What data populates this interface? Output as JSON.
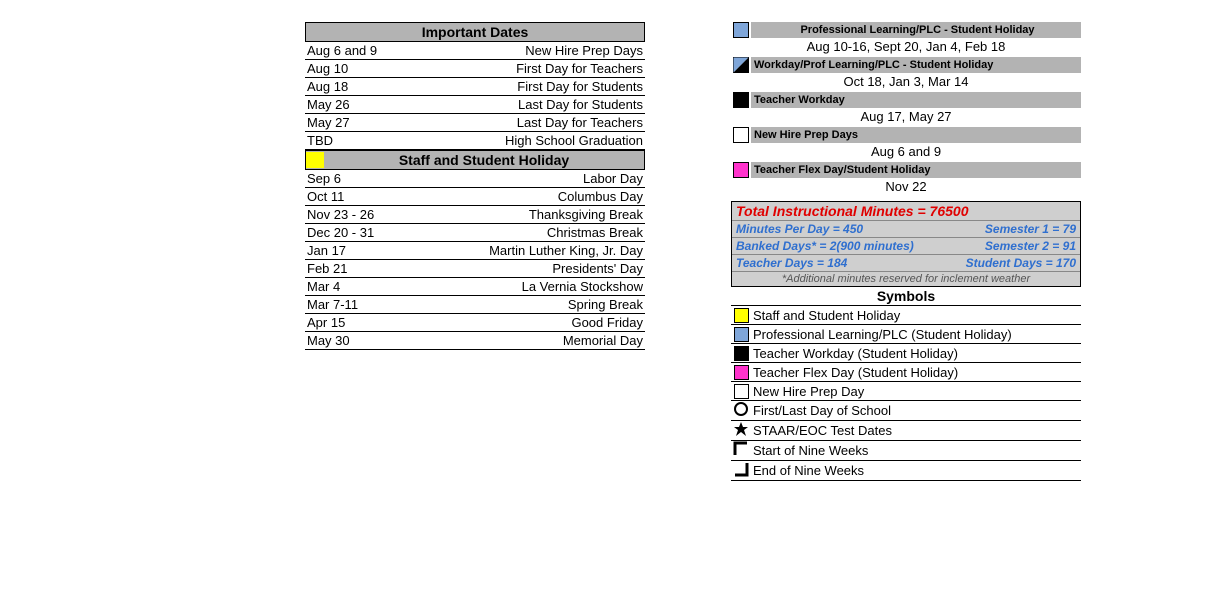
{
  "colors": {
    "yellow": "#ffff00",
    "blue": "#7fa6d9",
    "black": "#000000",
    "white": "#ffffff",
    "magenta": "#ff33cc",
    "grey_hdr": "#b3b3b3"
  },
  "left": {
    "important_dates_hdr": "Important Dates",
    "important_dates": [
      {
        "date": "Aug 6 and 9",
        "label": "New Hire Prep Days"
      },
      {
        "date": "Aug 10",
        "label": "First Day for Teachers"
      },
      {
        "date": "Aug 18",
        "label": "First Day for Students"
      },
      {
        "date": "May 26",
        "label": "Last Day for Students"
      },
      {
        "date": "May 27",
        "label": "Last Day for Teachers"
      },
      {
        "date": "TBD",
        "label": "High School Graduation"
      }
    ],
    "holiday_hdr": "Staff and Student Holiday",
    "holidays": [
      {
        "date": "Sep 6",
        "label": "Labor Day"
      },
      {
        "date": "Oct 11",
        "label": "Columbus Day"
      },
      {
        "date": "Nov 23 - 26",
        "label": "Thanksgiving Break"
      },
      {
        "date": "Dec 20 - 31",
        "label": "Christmas Break"
      },
      {
        "date": "Jan 17",
        "label": "Martin Luther King, Jr. Day"
      },
      {
        "date": "Feb 21",
        "label": "Presidents' Day"
      },
      {
        "date": "Mar 4",
        "label": "La Vernia Stockshow"
      },
      {
        "date": "Mar 7-11",
        "label": "Spring Break"
      },
      {
        "date": "Apr 15",
        "label": "Good Friday"
      },
      {
        "date": "May 30",
        "label": "Memorial Day"
      }
    ]
  },
  "legend": [
    {
      "color": "#7fa6d9",
      "diag": false,
      "title": "Professional Learning/PLC - Student Holiday",
      "center_title": true,
      "dates": "Aug 10-16, Sept 20, Jan 4, Feb 18"
    },
    {
      "color": "#7fa6d9",
      "diag": true,
      "title": "Workday/Prof Learning/PLC - Student Holiday",
      "center_title": false,
      "dates": "Oct 18, Jan 3, Mar 14"
    },
    {
      "color": "#000000",
      "diag": false,
      "title": "Teacher Workday",
      "center_title": false,
      "dates": "Aug 17, May 27"
    },
    {
      "color": "#ffffff",
      "diag": false,
      "title": "New Hire Prep Days",
      "center_title": false,
      "dates": "Aug 6 and 9"
    },
    {
      "color": "#ff33cc",
      "diag": false,
      "title": "Teacher Flex Day/Student Holiday",
      "center_title": false,
      "dates": "Nov 22"
    }
  ],
  "info": {
    "total": "Total Instructional Minutes = 76500",
    "mpd": "Minutes Per Day = 450",
    "sem1": "Semester 1 = 79",
    "banked": "Banked Days* = 2(900 minutes)",
    "sem2": "Semester 2 = 91",
    "tdays": "Teacher Days = 184",
    "sdays": "Student Days = 170",
    "note": "*Additional minutes reserved for inclement weather"
  },
  "symbols_hdr": "Symbols",
  "symbols": [
    {
      "icon": "sq",
      "color": "#ffff00",
      "label": "Staff and Student Holiday"
    },
    {
      "icon": "sq",
      "color": "#7fa6d9",
      "label": "Professional Learning/PLC (Student Holiday)"
    },
    {
      "icon": "sq",
      "color": "#000000",
      "label": "Teacher Workday (Student Holiday)"
    },
    {
      "icon": "sq",
      "color": "#ff33cc",
      "label": "Teacher Flex Day (Student Holiday)"
    },
    {
      "icon": "sq",
      "color": "#ffffff",
      "label": "New Hire Prep Day"
    },
    {
      "icon": "circle",
      "label": "First/Last Day of School"
    },
    {
      "icon": "star",
      "label": "STAAR/EOC Test Dates"
    },
    {
      "icon": "brk-top",
      "label": "Start of Nine Weeks"
    },
    {
      "icon": "brk-bot",
      "label": "End of Nine Weeks"
    }
  ]
}
